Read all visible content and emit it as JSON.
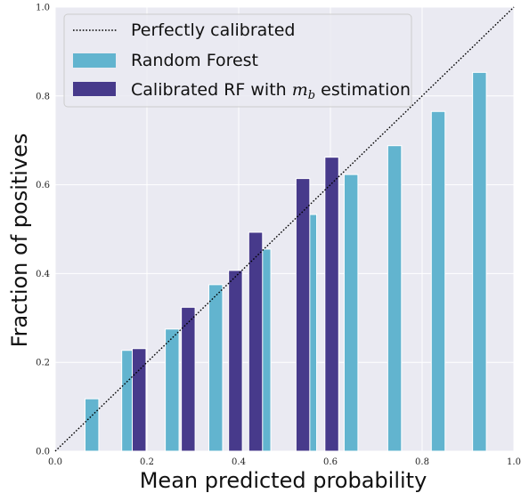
{
  "chart_data": {
    "type": "bar",
    "title": "",
    "xlabel": "Mean predicted probability",
    "ylabel": "Fraction of positives",
    "xlim": [
      0.0,
      1.0
    ],
    "ylim": [
      0.0,
      1.0
    ],
    "xticks": [
      "0.0",
      "0.2",
      "0.4",
      "0.6",
      "0.8",
      "1.0"
    ],
    "yticks": [
      "0.0",
      "0.2",
      "0.4",
      "0.6",
      "0.8",
      "1.0"
    ],
    "grid": true,
    "legend_position": "top-left",
    "reference_line": {
      "name": "Perfectly calibrated",
      "x": [
        0.0,
        1.0
      ],
      "y": [
        0.0,
        1.0
      ],
      "style": "dotted",
      "color": "#000000"
    },
    "bar_width": 0.03,
    "series": [
      {
        "name": "Random Forest",
        "color": "#62b4cf",
        "x": [
          0.08,
          0.16,
          0.255,
          0.35,
          0.455,
          0.555,
          0.645,
          0.74,
          0.835,
          0.925
        ],
        "values": [
          0.118,
          0.227,
          0.275,
          0.375,
          0.455,
          0.533,
          0.623,
          0.688,
          0.765,
          0.853
        ]
      },
      {
        "name": "Calibrated RF with $m_b$ estimation",
        "color": "#473a8b",
        "x": [
          0.183,
          0.29,
          0.393,
          0.437,
          0.54,
          0.603
        ],
        "values": [
          0.231,
          0.324,
          0.407,
          0.493,
          0.614,
          0.662
        ]
      }
    ]
  },
  "legend": {
    "reference_label": "Perfectly calibrated",
    "rf_label": "Random Forest",
    "cal_label_prefix": "Calibrated RF with ",
    "cal_label_math": "m",
    "cal_label_sub": "b",
    "cal_label_suffix": " estimation"
  }
}
